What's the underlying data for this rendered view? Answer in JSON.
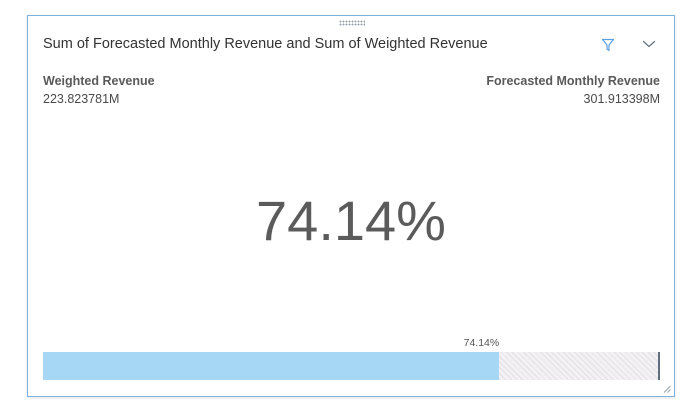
{
  "card": {
    "title": "Sum of Forecasted Monthly Revenue and Sum of Weighted Revenue",
    "actions": {
      "filter_icon": "filter-icon",
      "menu_icon": "chevron-down-icon"
    }
  },
  "measures": {
    "left": {
      "label": "Weighted Revenue",
      "value": "223.823781M"
    },
    "right": {
      "label": "Forecasted Monthly Revenue",
      "value": "301.913398M"
    }
  },
  "gauge": {
    "percent_text": "74.14%",
    "bar_label": "74.14%",
    "fraction": 0.7414
  },
  "colors": {
    "accent": "#5aa0e6",
    "card_border": "#7fb3df",
    "bar_fill": "#a6d8f5",
    "bar_remainder": "#e3dfe6",
    "text_primary": "#333333"
  }
}
